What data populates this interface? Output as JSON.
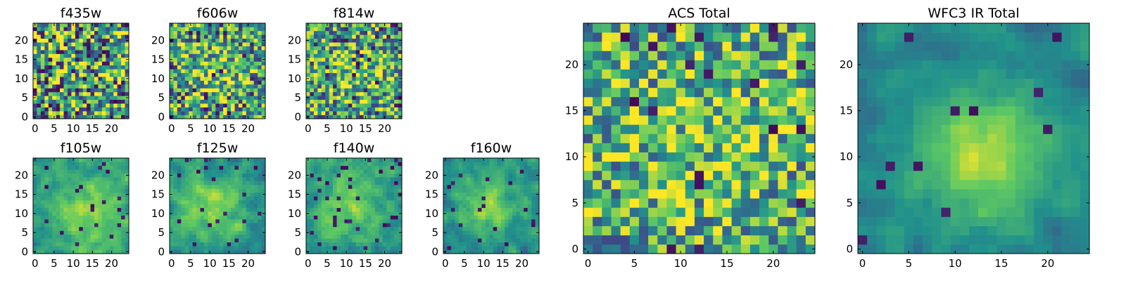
{
  "colormap": {
    "name": "viridis",
    "stops": [
      "#440154",
      "#3b528b",
      "#21918c",
      "#5ec962",
      "#fde725"
    ]
  },
  "chart_data": [
    {
      "type": "heatmap",
      "title": "f435w",
      "grid": [
        25,
        25
      ],
      "xlim": [
        -0.5,
        24.5
      ],
      "ylim": [
        -0.5,
        24.5
      ],
      "xticks": [
        0,
        5,
        10,
        15,
        20
      ],
      "yticks": [
        0,
        5,
        10,
        15,
        20
      ],
      "grid_lines": false,
      "field": {
        "seed": 11,
        "noise": 0.55,
        "blob_amp": 0.05,
        "blob_cx": 12,
        "blob_cy": 12,
        "blob_sigma": 7,
        "base": 0.55,
        "dark_spots": 0.06
      }
    },
    {
      "type": "heatmap",
      "title": "f606w",
      "grid": [
        25,
        25
      ],
      "xlim": [
        -0.5,
        24.5
      ],
      "ylim": [
        -0.5,
        24.5
      ],
      "xticks": [
        0,
        5,
        10,
        15,
        20
      ],
      "yticks": [
        0,
        5,
        10,
        15,
        20
      ],
      "grid_lines": false,
      "field": {
        "seed": 23,
        "noise": 0.45,
        "blob_amp": 0.2,
        "blob_cx": 11,
        "blob_cy": 11,
        "blob_sigma": 5,
        "base": 0.58,
        "dark_spots": 0.04
      }
    },
    {
      "type": "heatmap",
      "title": "f814w",
      "grid": [
        25,
        25
      ],
      "xlim": [
        -0.5,
        24.5
      ],
      "ylim": [
        -0.5,
        24.5
      ],
      "xticks": [
        0,
        5,
        10,
        15,
        20
      ],
      "yticks": [
        0,
        5,
        10,
        15,
        20
      ],
      "grid_lines": false,
      "field": {
        "seed": 37,
        "noise": 0.45,
        "blob_amp": 0.18,
        "blob_cx": 13,
        "blob_cy": 12,
        "blob_sigma": 5,
        "base": 0.58,
        "dark_spots": 0.05
      }
    },
    {
      "type": "heatmap",
      "title": "f105w",
      "grid": [
        25,
        25
      ],
      "xlim": [
        -0.5,
        24.5
      ],
      "ylim": [
        -0.5,
        24.5
      ],
      "xticks": [
        0,
        5,
        10,
        15,
        20
      ],
      "yticks": [
        0,
        5,
        10,
        15,
        20
      ],
      "grid_lines": false,
      "field": {
        "seed": 41,
        "noise": 0.3,
        "blob_amp": 0.3,
        "blob_cx": 14,
        "blob_cy": 10,
        "blob_sigma": 6,
        "base": 0.55,
        "dark_spots": 0.03,
        "smooth": true
      }
    },
    {
      "type": "heatmap",
      "title": "f125w",
      "grid": [
        25,
        25
      ],
      "xlim": [
        -0.5,
        24.5
      ],
      "ylim": [
        -0.5,
        24.5
      ],
      "xticks": [
        0,
        5,
        10,
        15,
        20
      ],
      "yticks": [
        0,
        5,
        10,
        15,
        20
      ],
      "grid_lines": false,
      "field": {
        "seed": 53,
        "noise": 0.32,
        "blob_amp": 0.28,
        "blob_cx": 11,
        "blob_cy": 12,
        "blob_sigma": 6,
        "base": 0.52,
        "dark_spots": 0.04,
        "smooth": true
      }
    },
    {
      "type": "heatmap",
      "title": "f140w",
      "grid": [
        25,
        25
      ],
      "xlim": [
        -0.5,
        24.5
      ],
      "ylim": [
        -0.5,
        24.5
      ],
      "xticks": [
        0,
        5,
        10,
        15,
        20
      ],
      "yticks": [
        0,
        5,
        10,
        15,
        20
      ],
      "grid_lines": false,
      "field": {
        "seed": 67,
        "noise": 0.32,
        "blob_amp": 0.25,
        "blob_cx": 10,
        "blob_cy": 13,
        "blob_sigma": 6,
        "base": 0.54,
        "dark_spots": 0.04,
        "smooth": true
      }
    },
    {
      "type": "heatmap",
      "title": "f160w",
      "grid": [
        25,
        25
      ],
      "xlim": [
        -0.5,
        24.5
      ],
      "ylim": [
        -0.5,
        24.5
      ],
      "xticks": [
        0,
        5,
        10,
        15,
        20
      ],
      "yticks": [
        0,
        5,
        10,
        15,
        20
      ],
      "grid_lines": false,
      "field": {
        "seed": 79,
        "noise": 0.3,
        "blob_amp": 0.35,
        "blob_cx": 11,
        "blob_cy": 12,
        "blob_sigma": 5,
        "base": 0.5,
        "dark_spots": 0.04,
        "smooth": true
      }
    },
    {
      "type": "heatmap",
      "title": "ACS Total",
      "grid": [
        25,
        25
      ],
      "xlim": [
        -0.5,
        24.5
      ],
      "ylim": [
        -0.5,
        24.5
      ],
      "xticks": [
        0,
        5,
        10,
        15,
        20
      ],
      "yticks": [
        0,
        5,
        10,
        15,
        20
      ],
      "grid_lines": false,
      "field": {
        "seed": 97,
        "noise": 0.4,
        "blob_amp": 0.12,
        "blob_cx": 12,
        "blob_cy": 12,
        "blob_sigma": 7,
        "base": 0.6,
        "dark_spots": 0.035
      }
    },
    {
      "type": "heatmap",
      "title": "WFC3 IR Total",
      "grid": [
        25,
        25
      ],
      "xlim": [
        -0.5,
        24.5
      ],
      "ylim": [
        -0.5,
        24.5
      ],
      "xticks": [
        0,
        5,
        10,
        15,
        20
      ],
      "yticks": [
        0,
        5,
        10,
        15,
        20
      ],
      "grid_lines": false,
      "field": {
        "seed": 113,
        "noise": 0.22,
        "blob_amp": 0.42,
        "blob_cx": 13,
        "blob_cy": 10,
        "blob_sigma": 5,
        "base": 0.45,
        "dark_spots": 0.02,
        "smooth": true
      }
    }
  ]
}
